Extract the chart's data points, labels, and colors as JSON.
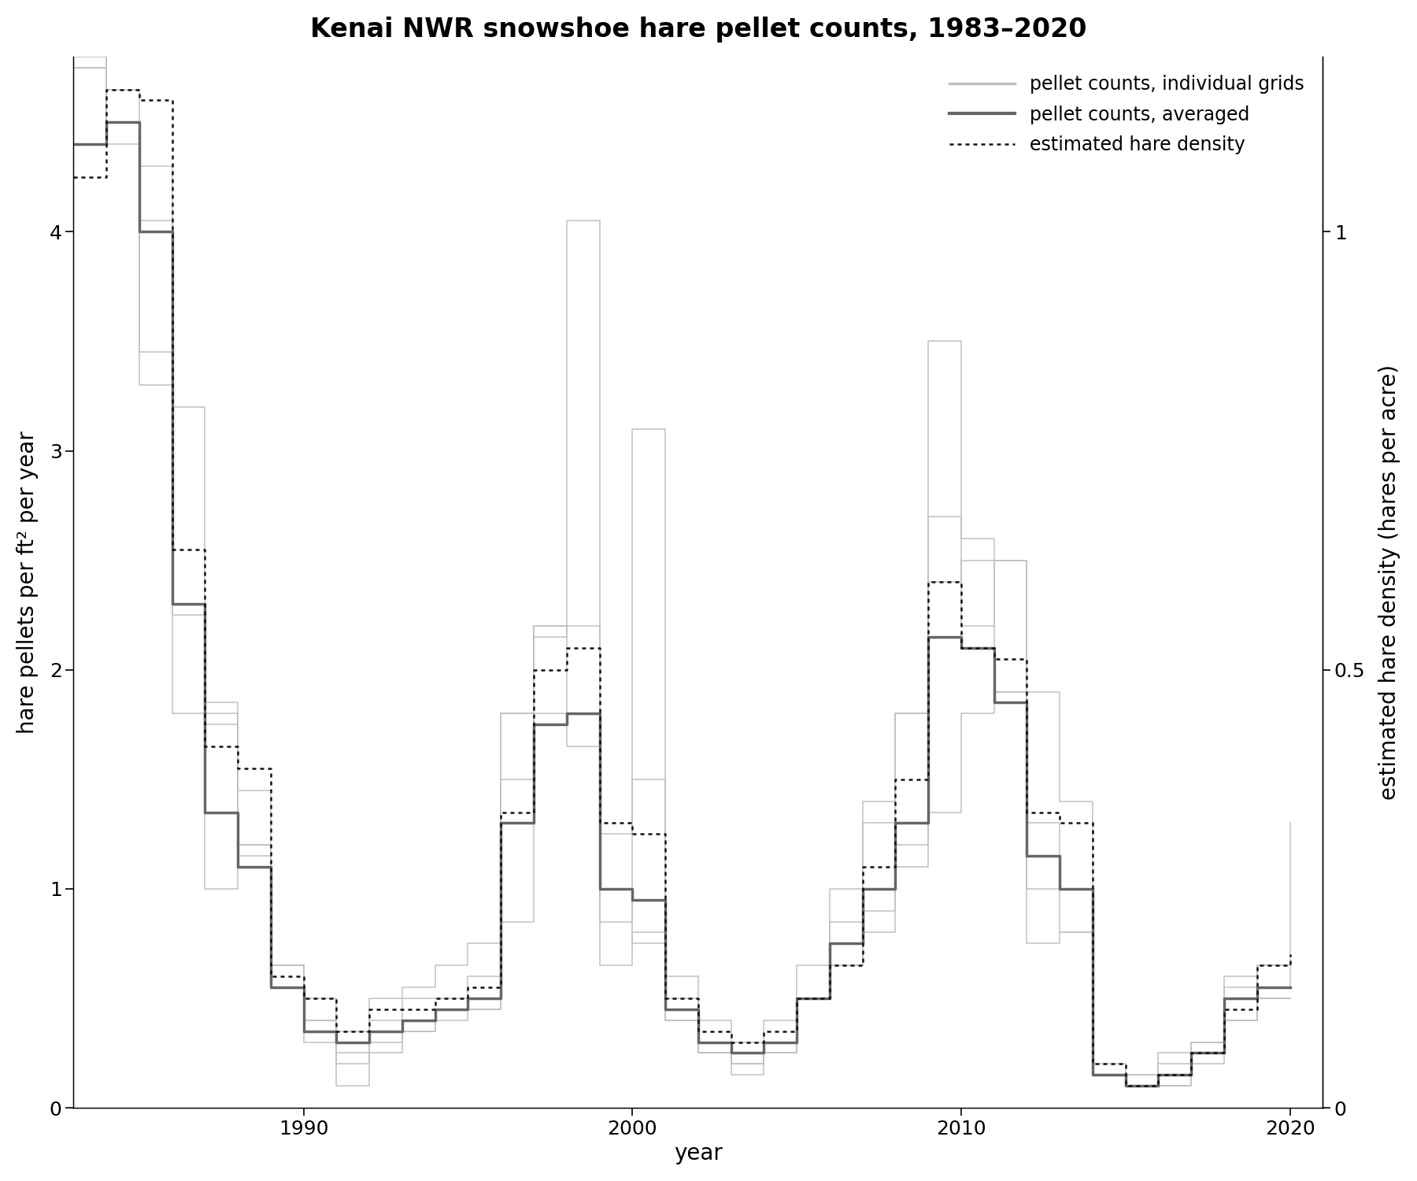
{
  "title": "Kenai NWR snowshoe hare pellet counts, 1983–2020",
  "xlabel": "year",
  "ylabel_left": "hare pellets per ft² per year",
  "ylabel_right": "estimated hare density (hares per acre)",
  "years": [
    1983,
    1984,
    1985,
    1986,
    1987,
    1988,
    1989,
    1990,
    1991,
    1992,
    1993,
    1994,
    1995,
    1996,
    1997,
    1998,
    1999,
    2000,
    2001,
    2002,
    2003,
    2004,
    2005,
    2006,
    2007,
    2008,
    2009,
    2010,
    2011,
    2012,
    2013,
    2014,
    2015,
    2016,
    2017,
    2018,
    2019,
    2020
  ],
  "avg_pellets": [
    4.4,
    4.5,
    4.0,
    2.3,
    1.35,
    1.1,
    0.55,
    0.35,
    0.3,
    0.35,
    0.4,
    0.45,
    0.5,
    1.3,
    1.75,
    1.8,
    1.0,
    0.95,
    0.45,
    0.3,
    0.25,
    0.3,
    0.5,
    0.75,
    1.0,
    1.3,
    2.15,
    2.1,
    1.85,
    1.15,
    1.0,
    0.15,
    0.1,
    0.15,
    0.25,
    0.5,
    0.55,
    0.55
  ],
  "density_pellet_scale": [
    4.25,
    4.65,
    4.6,
    2.55,
    1.65,
    1.55,
    0.6,
    0.5,
    0.35,
    0.45,
    0.45,
    0.5,
    0.55,
    1.35,
    2.0,
    2.1,
    1.3,
    1.25,
    0.5,
    0.35,
    0.3,
    0.35,
    0.5,
    0.65,
    1.1,
    1.5,
    2.4,
    2.1,
    2.05,
    1.35,
    1.3,
    0.2,
    0.1,
    0.15,
    0.25,
    0.45,
    0.65,
    0.7
  ],
  "individual_grids": [
    [
      4.8,
      4.5,
      3.3,
      1.8,
      1.75,
      1.45,
      0.65,
      0.5,
      0.35,
      0.5,
      0.55,
      0.65,
      0.75,
      1.8,
      2.2,
      2.2,
      1.25,
      1.5,
      0.5,
      0.4,
      0.3,
      0.4,
      0.65,
      1.0,
      1.3,
      1.8,
      2.7,
      2.6,
      2.5,
      1.9,
      1.4,
      0.2,
      0.15,
      0.25,
      0.3,
      0.6,
      0.65,
      1.3
    ],
    [
      4.75,
      4.65,
      4.3,
      2.25,
      1.8,
      1.2,
      0.65,
      0.4,
      0.25,
      0.4,
      0.5,
      0.5,
      0.6,
      1.8,
      2.15,
      4.05,
      0.85,
      3.1,
      0.6,
      0.25,
      0.15,
      0.3,
      0.5,
      0.85,
      1.4,
      1.8,
      2.4,
      2.5,
      1.9,
      1.3,
      1.0,
      0.15,
      0.15,
      0.2,
      0.3,
      0.55,
      0.65,
      0.55
    ],
    [
      4.75,
      4.4,
      3.45,
      3.2,
      1.85,
      1.2,
      0.65,
      0.4,
      0.2,
      0.25,
      0.35,
      0.4,
      0.45,
      0.85,
      2.2,
      1.8,
      1.0,
      0.75,
      0.4,
      0.25,
      0.2,
      0.25,
      0.5,
      0.65,
      0.9,
      1.2,
      3.5,
      2.2,
      2.5,
      1.0,
      0.8,
      0.15,
      0.1,
      0.1,
      0.25,
      0.4,
      0.5,
      0.5
    ],
    [
      4.8,
      4.5,
      4.05,
      2.3,
      1.0,
      1.15,
      0.55,
      0.3,
      0.1,
      0.3,
      0.35,
      0.45,
      0.45,
      1.5,
      1.8,
      1.65,
      0.65,
      0.8,
      0.4,
      0.25,
      0.2,
      0.25,
      0.5,
      0.65,
      0.8,
      1.1,
      1.35,
      1.8,
      1.9,
      0.75,
      0.8,
      0.15,
      0.1,
      0.1,
      0.2,
      0.4,
      0.5,
      0.5
    ]
  ],
  "avg_color": "#666666",
  "individual_color": "#c0c0c0",
  "density_color": "#111111",
  "ylim": [
    0,
    4.8
  ],
  "pellets_per_hare": 4.0,
  "xticks": [
    1990,
    2000,
    2010,
    2020
  ],
  "yticks_left": [
    0,
    1,
    2,
    3,
    4
  ],
  "yticks_right_labels": [
    "0",
    "0.5",
    "1"
  ],
  "yticks_right_pellet_vals": [
    0.0,
    2.0,
    4.0
  ],
  "legend_labels": [
    "pellet counts, individual grids",
    "pellet counts, averaged",
    "estimated hare density"
  ],
  "title_fontsize": 24,
  "axis_fontsize": 20,
  "tick_fontsize": 18,
  "legend_fontsize": 17,
  "avg_lw": 2.5,
  "indiv_lw": 1.2,
  "density_lw": 1.8
}
